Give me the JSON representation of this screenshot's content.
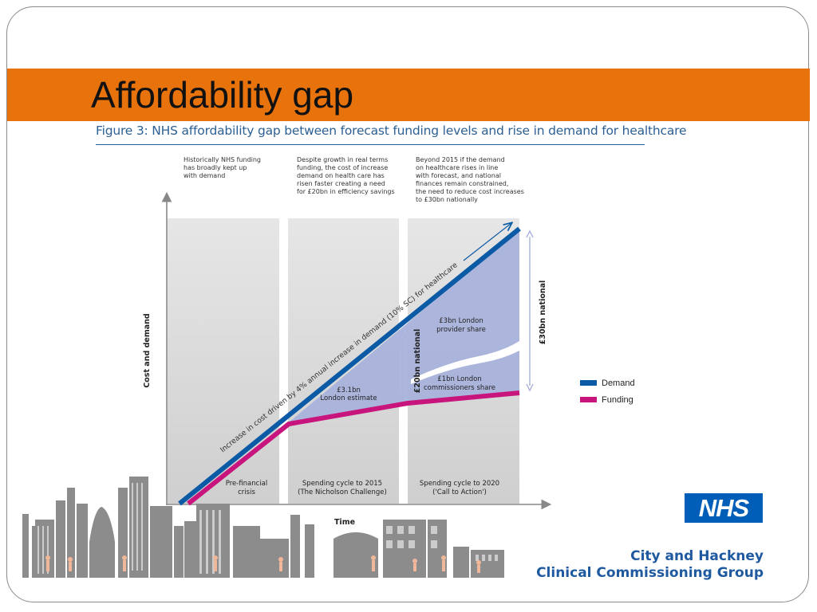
{
  "slide": {
    "title": "Affordability gap"
  },
  "figure": {
    "caption": "Figure 3: NHS affordability gap between forecast funding levels and rise in demand for healthcare",
    "notes": [
      "Historically NHS funding\nhas broadly kept up\nwith demand",
      "Despite growth in real terms\nfunding, the cost of increase\ndemand on health care has\nrisen faster creating a need\nfor £20bn in efficiency savings",
      "Beyond 2015 if the demand\non healthcare rises in line\nwith forecast, and national\nfinances remain constrained,\nthe need to reduce cost increases\nto £30bn nationally"
    ],
    "y_axis_label": "Cost and demand",
    "x_axis_label": "Time",
    "period_labels": [
      [
        "Pre-financial",
        "crisis"
      ],
      [
        "Spending cycle to 2015",
        "(The Nicholson Challenge)"
      ],
      [
        "Spending cycle to 2020",
        "('Call to Action')"
      ]
    ],
    "demand_annotation": "Increase in cost driven by 4% annual increase in demand (10% SC) for healthcare",
    "gap_labels": {
      "london_estimate": [
        "£3.1bn",
        "London estimate"
      ],
      "provider_share": [
        "£3bn London",
        "provider share"
      ],
      "commissioners_share": [
        "£1bn London",
        "commissioners share"
      ],
      "national_20": "£20bn national",
      "national_30": "£30bn national"
    },
    "legend": [
      {
        "label": "Demand",
        "color": "#0b5aa5"
      },
      {
        "label": "Funding",
        "color": "#c8157e"
      }
    ]
  },
  "branding": {
    "logo_text": "NHS",
    "org_line1": "City and Hackney",
    "org_line2": "Clinical Commissioning Group"
  },
  "colors": {
    "title_bar": "#e8730c",
    "caption": "#2c5f93",
    "gap_fill": "#a9b3dc",
    "panel": "#dcdcdc",
    "skyline": "#8c8c8c",
    "figures": "#f0b79a"
  }
}
